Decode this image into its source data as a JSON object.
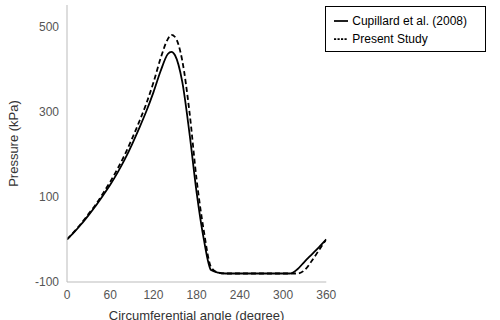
{
  "chart_data": {
    "type": "line",
    "x_label": "Circumferential angle (degree)",
    "y_label": "Pressure (kPa)",
    "x": [
      0,
      10,
      20,
      30,
      40,
      50,
      60,
      70,
      80,
      90,
      100,
      110,
      120,
      130,
      140,
      145,
      150,
      160,
      170,
      180,
      190,
      200,
      210,
      220,
      230,
      240,
      250,
      260,
      270,
      280,
      290,
      300,
      310,
      320,
      330,
      340,
      350,
      360
    ],
    "series": [
      {
        "name": "Present Study",
        "color": "#000000",
        "line_style": "dashed",
        "values": [
          0,
          18,
          38,
          60,
          82,
          108,
          135,
          165,
          198,
          235,
          275,
          318,
          368,
          425,
          470,
          480,
          475,
          420,
          300,
          140,
          20,
          -65,
          -78,
          -80,
          -80,
          -80,
          -80,
          -80,
          -80,
          -80,
          -80,
          -80,
          -80,
          -80,
          -72,
          -50,
          -25,
          0
        ]
      },
      {
        "name": "Cupillard et al. (2008)",
        "color": "#000000",
        "line_style": "solid",
        "values": [
          0,
          17,
          36,
          57,
          79,
          103,
          128,
          156,
          187,
          222,
          260,
          300,
          345,
          395,
          435,
          440,
          432,
          370,
          250,
          110,
          0,
          -72,
          -78,
          -80,
          -80,
          -80,
          -80,
          -80,
          -80,
          -80,
          -80,
          -80,
          -80,
          -70,
          -52,
          -35,
          -18,
          0
        ]
      }
    ],
    "xlim": [
      0,
      360
    ],
    "xticks": [
      0,
      60,
      120,
      180,
      240,
      300,
      360
    ],
    "ylim": [
      -100,
      550
    ],
    "yticks": [
      -100,
      100,
      300,
      500
    ],
    "legend": "upper right",
    "grid": false
  }
}
